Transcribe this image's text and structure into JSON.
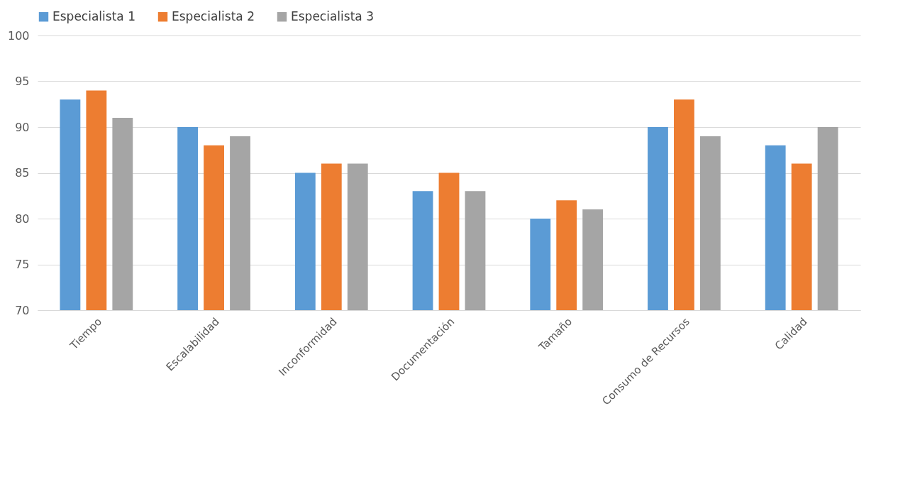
{
  "chart_data": {
    "type": "bar",
    "categories": [
      "Tiempo",
      "Escalabilidad",
      "Inconformidad",
      "Documentación",
      "Tamaño",
      "Consumo de Recursos",
      "Calidad"
    ],
    "series": [
      {
        "name": "Especialista 1",
        "color": "#5b9bd5",
        "values": [
          93,
          90,
          85,
          83,
          80,
          90,
          88
        ]
      },
      {
        "name": "Especialista 2",
        "color": "#ed7d31",
        "values": [
          94,
          88,
          86,
          85,
          82,
          93,
          86
        ]
      },
      {
        "name": "Especialista 3",
        "color": "#a5a5a5",
        "values": [
          91,
          89,
          86,
          83,
          81,
          89,
          90
        ]
      }
    ],
    "ylim": [
      70,
      100
    ],
    "yticks": [
      70,
      75,
      80,
      85,
      90,
      95,
      100
    ],
    "grid": "y",
    "legend": "top"
  }
}
